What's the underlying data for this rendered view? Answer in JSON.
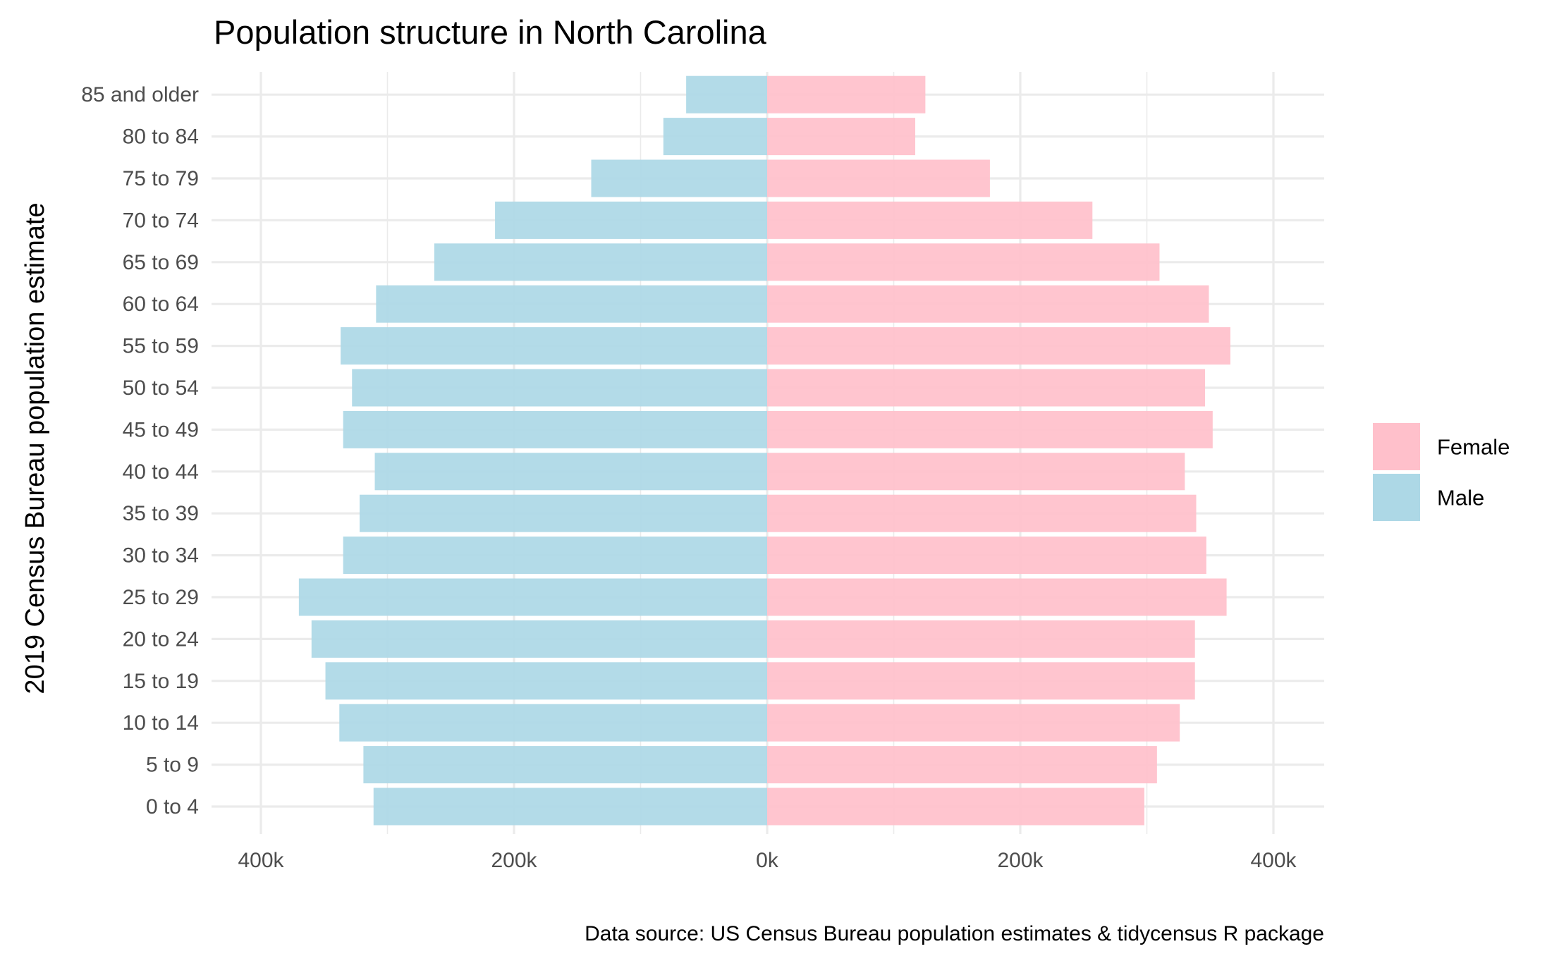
{
  "chart_data": {
    "type": "bar",
    "orientation": "horizontal",
    "layout": "population-pyramid",
    "title": "Population structure in North Carolina",
    "ylabel": "2019 Census Bureau population estimate",
    "xlabel": "",
    "caption": "Data source: US Census Bureau population estimates & tidycensus R package",
    "categories": [
      "0 to 4",
      "5 to 9",
      "10 to 14",
      "15 to 19",
      "20 to 24",
      "25 to 29",
      "30 to 34",
      "35 to 39",
      "40 to 44",
      "45 to 49",
      "50 to 54",
      "55 to 59",
      "60 to 64",
      "65 to 69",
      "70 to 74",
      "75 to 79",
      "80 to 84",
      "85 and older"
    ],
    "xlim": [
      -440000,
      440000
    ],
    "x_ticks": [
      -400000,
      -200000,
      0,
      200000,
      400000
    ],
    "x_tick_labels": [
      "400k",
      "200k",
      "0k",
      "200k",
      "400k"
    ],
    "grid": true,
    "legend_position": "right",
    "series": [
      {
        "name": "Female",
        "color": "#ffc0cb",
        "values": [
          298000,
          308000,
          326000,
          338000,
          338000,
          363000,
          347000,
          339000,
          330000,
          352000,
          346000,
          366000,
          349000,
          310000,
          257000,
          176000,
          117000,
          125000
        ]
      },
      {
        "name": "Male",
        "color": "#add8e6",
        "values": [
          -311000,
          -319000,
          -338000,
          -349000,
          -360000,
          -370000,
          -335000,
          -322000,
          -310000,
          -335000,
          -328000,
          -337000,
          -309000,
          -263000,
          -215000,
          -139000,
          -82000,
          -64000
        ]
      }
    ]
  }
}
